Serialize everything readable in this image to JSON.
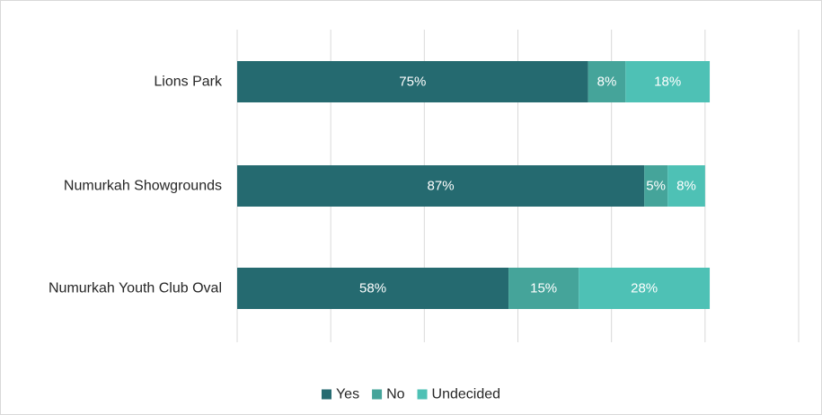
{
  "chart_data": {
    "type": "bar",
    "orientation": "horizontal",
    "stacked": true,
    "categories": [
      "Lions Park",
      "Numurkah Showgrounds",
      "Numurkah Youth Club Oval"
    ],
    "series": [
      {
        "name": "Yes",
        "values": [
          75,
          87,
          58
        ],
        "labels": [
          "75%",
          "87%",
          "58%"
        ],
        "color": "#256a70"
      },
      {
        "name": "No",
        "values": [
          8,
          5,
          15
        ],
        "labels": [
          "8%",
          "5%",
          "15%"
        ],
        "color": "#45a49a"
      },
      {
        "name": "Undecided",
        "values": [
          18,
          8,
          28
        ],
        "labels": [
          "18%",
          "8%",
          "28%"
        ],
        "color": "#4ec1b5"
      }
    ],
    "xlim": [
      0,
      120
    ],
    "grid": true,
    "legend": "bottom"
  }
}
